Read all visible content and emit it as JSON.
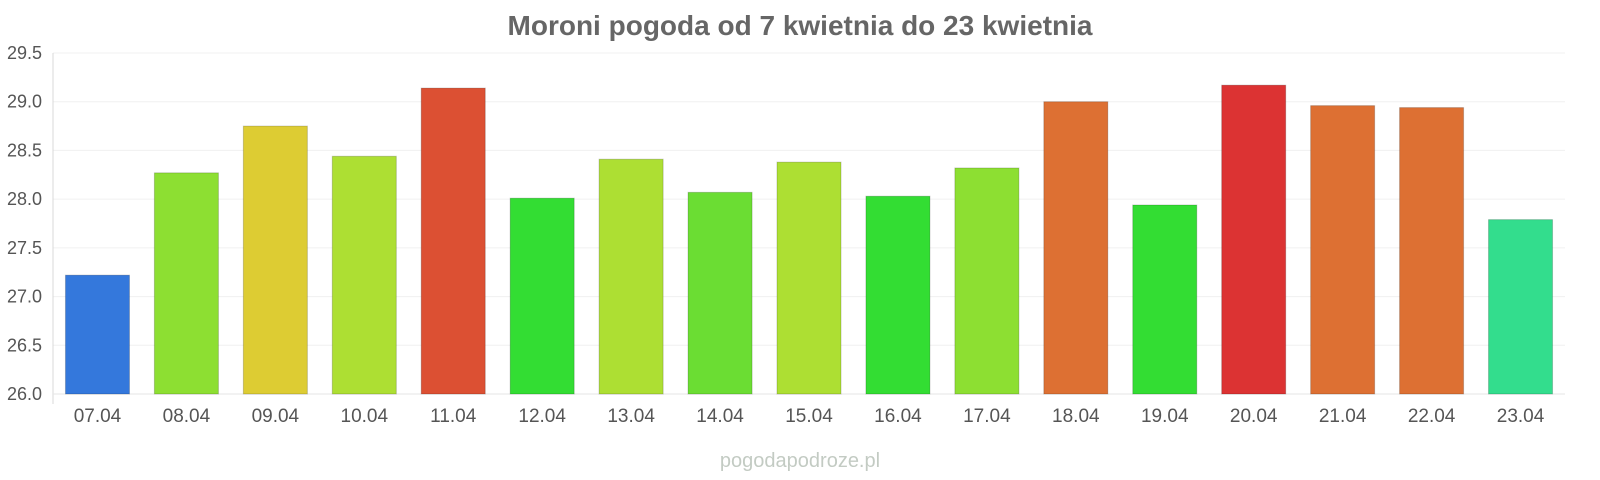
{
  "chart_data": {
    "type": "bar",
    "title": "Moroni pogoda od 7 kwietnia do 23 kwietnia",
    "xlabel": "",
    "ylabel": "",
    "ylim": [
      26.0,
      29.5
    ],
    "yticks": [
      "26.0",
      "26.5",
      "27.0",
      "27.5",
      "28.0",
      "28.5",
      "29.0",
      "29.5"
    ],
    "grid": true,
    "categories": [
      "07.04",
      "08.04",
      "09.04",
      "10.04",
      "11.04",
      "12.04",
      "13.04",
      "14.04",
      "15.04",
      "16.04",
      "17.04",
      "18.04",
      "19.04",
      "20.04",
      "21.04",
      "22.04",
      "23.04"
    ],
    "values": [
      27.22,
      28.27,
      28.75,
      28.44,
      29.14,
      28.01,
      28.41,
      28.07,
      28.38,
      28.03,
      28.32,
      29.0,
      27.94,
      29.17,
      28.96,
      28.94,
      27.79
    ],
    "colors": [
      "#3478dc",
      "#8ddf32",
      "#ddcc33",
      "#addf33",
      "#dc5033",
      "#33dd33",
      "#addf33",
      "#6bdd33",
      "#addf33",
      "#33dd33",
      "#8ddf32",
      "#dd7033",
      "#33dd33",
      "#dc3333",
      "#dd7033",
      "#dd7033",
      "#33dd8d"
    ]
  },
  "watermark": "pogodapodroze.pl"
}
